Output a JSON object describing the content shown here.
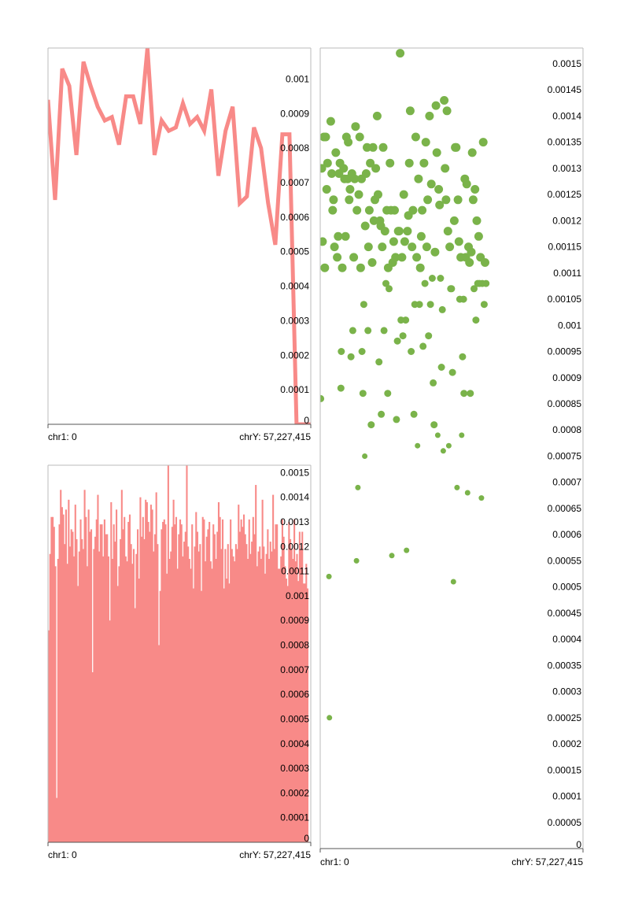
{
  "chart_data": [
    {
      "type": "line",
      "color": "#f88a88",
      "xlabel_left": "chr1: 0",
      "xlabel_right": "chrY: 57,227,415",
      "ylim": [
        0,
        0.00109
      ],
      "yticks": [
        "0",
        "0.0001",
        "0.0002",
        "0.0003",
        "0.0004",
        "0.0005",
        "0.0006",
        "0.0007",
        "0.0008",
        "0.0009",
        "0.001"
      ],
      "values": [
        0.00094,
        0.00065,
        0.00103,
        0.00098,
        0.00078,
        0.00105,
        0.00098,
        0.00092,
        0.00088,
        0.00089,
        0.00081,
        0.00095,
        0.00095,
        0.00087,
        0.00109,
        0.00078,
        0.00088,
        0.00085,
        0.00086,
        0.00093,
        0.00087,
        0.00089,
        0.00085,
        0.00097,
        0.00072,
        0.00085,
        0.00092,
        0.00064,
        0.00066,
        0.00086,
        0.0008,
        0.00064,
        0.00052,
        0.00084,
        0.00084,
        0.0,
        0.0,
        0.0
      ]
    },
    {
      "type": "bar",
      "color": "#f88a88",
      "xlabel_left": "chr1: 0",
      "xlabel_right": "chrY: 57,227,415",
      "ylim": [
        0,
        0.00153
      ],
      "yticks": [
        "0",
        "0.0001",
        "0.0002",
        "0.0003",
        "0.0004",
        "0.0005",
        "0.0006",
        "0.0007",
        "0.0008",
        "0.0009",
        "0.001",
        "0.0011",
        "0.0012",
        "0.0013",
        "0.0014",
        "0.0015"
      ],
      "values": [
        0.00086,
        0.00117,
        0.00132,
        0.00132,
        0.00128,
        0.00112,
        0.00018,
        0.00115,
        0.00129,
        0.00143,
        0.00136,
        0.00133,
        0.00121,
        0.00135,
        0.00113,
        0.00139,
        0.0012,
        0.00127,
        0.00126,
        0.00116,
        0.00137,
        0.00123,
        0.00104,
        0.00118,
        0.00131,
        0.00123,
        0.00119,
        0.00143,
        0.00132,
        0.00112,
        0.00135,
        0.00126,
        0.00127,
        0.00069,
        0.00119,
        0.00124,
        0.00131,
        0.00141,
        0.00118,
        0.00129,
        0.00129,
        0.00116,
        0.00131,
        0.00125,
        0.00125,
        0.00116,
        0.0009,
        0.00138,
        0.00115,
        0.00129,
        0.00122,
        0.00135,
        0.00104,
        0.00112,
        0.00123,
        0.00143,
        0.00127,
        0.00132,
        0.00116,
        0.00114,
        0.0013,
        0.00133,
        0.00121,
        0.00113,
        0.00119,
        0.00095,
        0.00117,
        0.00127,
        0.00107,
        0.0014,
        0.00124,
        0.00132,
        0.00123,
        0.00139,
        0.00138,
        0.0013,
        0.00126,
        0.00137,
        0.00135,
        0.00118,
        0.00125,
        0.00142,
        0.00121,
        0.0008,
        0.00102,
        0.00127,
        0.0013,
        0.00131,
        0.00129,
        0.00109,
        0.00153,
        0.00115,
        0.00118,
        0.00128,
        0.00139,
        0.00129,
        0.00132,
        0.00111,
        0.00125,
        0.00131,
        0.00129,
        0.00116,
        0.00122,
        0.00126,
        0.00153,
        0.0012,
        0.00115,
        0.00111,
        0.00129,
        0.00103,
        0.0012,
        0.00134,
        0.00126,
        0.00118,
        0.00121,
        0.00102,
        0.00132,
        0.00131,
        0.00114,
        0.00124,
        0.00127,
        0.0013,
        0.00114,
        0.00111,
        0.00129,
        0.00125,
        0.00115,
        0.00126,
        0.00138,
        0.00132,
        0.00119,
        0.00131,
        0.00103,
        0.00119,
        0.00107,
        0.00121,
        0.00105,
        0.00131,
        0.00119,
        0.00116,
        0.00114,
        0.00121,
        0.00119,
        0.00137,
        0.00126,
        0.00131,
        0.00128,
        0.00133,
        0.00125,
        0.00121,
        0.00115,
        0.00131,
        0.00117,
        0.00122,
        0.00132,
        0.00125,
        0.00145,
        0.00112,
        0.00118,
        0.0012,
        0.00115,
        0.00139,
        0.0012,
        0.00109,
        0.00117,
        0.00127,
        0.00115,
        0.00122,
        0.00118,
        0.00141,
        0.00119,
        0.00129,
        0.00129,
        0.00111,
        0.00111,
        0.00116,
        0.00131,
        0.00124,
        0.00112,
        0.00107,
        0.00104,
        0.0013,
        0.00123,
        0.00119,
        0.00115,
        0.00131,
        0.00114,
        0.00117,
        0.00106,
        0.00126,
        0.00119,
        0.00126,
        0.00105,
        0.00105,
        0.00113,
        0.00103,
        0.0,
        0.0
      ]
    },
    {
      "type": "scatter",
      "color": "#7ab34a",
      "xlabel_left": "chr1: 0",
      "xlabel_right": "chrY: 57,227,415",
      "xlim": [
        0,
        57227415
      ],
      "ylim": [
        0,
        0.00153
      ],
      "yticks": [
        "0",
        "0.00005",
        "0.0001",
        "0.00015",
        "0.0002",
        "0.00025",
        "0.0003",
        "0.00035",
        "0.0004",
        "0.00045",
        "0.0005",
        "0.00055",
        "0.0006",
        "0.00065",
        "0.0007",
        "0.00075",
        "0.0008",
        "0.00085",
        "0.0009",
        "0.00095",
        "0.001",
        "0.00105",
        "0.0011",
        "0.00115",
        "0.0012",
        "0.00125",
        "0.0013",
        "0.00135",
        "0.0014",
        "0.00145",
        "0.0015"
      ],
      "points": [
        [
          100000,
          0.00086
        ],
        [
          350000,
          0.0013
        ],
        [
          500000,
          0.00116
        ],
        [
          800000,
          0.00136
        ],
        [
          1000000,
          0.00111
        ],
        [
          1200000,
          0.00136
        ],
        [
          1400000,
          0.00126
        ],
        [
          1600000,
          0.00131
        ],
        [
          1900000,
          0.00052
        ],
        [
          2000000,
          0.00025
        ],
        [
          2300000,
          0.00139
        ],
        [
          2500000,
          0.00129
        ],
        [
          2700000,
          0.00122
        ],
        [
          2900000,
          0.00124
        ],
        [
          3100000,
          0.00115
        ],
        [
          3400000,
          0.00133
        ],
        [
          3700000,
          0.00113
        ],
        [
          3900000,
          0.00117
        ],
        [
          4100000,
          0.00129
        ],
        [
          4300000,
          0.00131
        ],
        [
          4500000,
          0.00088
        ],
        [
          4600000,
          0.00095
        ],
        [
          4800000,
          0.00111
        ],
        [
          5100000,
          0.0013
        ],
        [
          5300000,
          0.00128
        ],
        [
          5500000,
          0.00117
        ],
        [
          5700000,
          0.00136
        ],
        [
          6000000,
          0.00128
        ],
        [
          6100000,
          0.00135
        ],
        [
          6300000,
          0.00124
        ],
        [
          6500000,
          0.00126
        ],
        [
          6700000,
          0.00094
        ],
        [
          6900000,
          0.00129
        ],
        [
          7100000,
          0.00099
        ],
        [
          7300000,
          0.00113
        ],
        [
          7500000,
          0.00128
        ],
        [
          7700000,
          0.00138
        ],
        [
          7900000,
          0.00055
        ],
        [
          8000000,
          0.00122
        ],
        [
          8200000,
          0.00069
        ],
        [
          8400000,
          0.00125
        ],
        [
          8600000,
          0.00136
        ],
        [
          8800000,
          0.00111
        ],
        [
          9000000,
          0.00128
        ],
        [
          9100000,
          0.00095
        ],
        [
          9300000,
          0.00087
        ],
        [
          9500000,
          0.00104
        ],
        [
          9700000,
          0.00075
        ],
        [
          9800000,
          0.00119
        ],
        [
          10000000,
          0.00129
        ],
        [
          10200000,
          0.00134
        ],
        [
          10400000,
          0.00099
        ],
        [
          10500000,
          0.00115
        ],
        [
          10700000,
          0.00122
        ],
        [
          10900000,
          0.00131
        ],
        [
          11100000,
          0.00081
        ],
        [
          11300000,
          0.00112
        ],
        [
          11500000,
          0.00134
        ],
        [
          11700000,
          0.0012
        ],
        [
          11900000,
          0.00124
        ],
        [
          12100000,
          0.0013
        ],
        [
          12400000,
          0.0014
        ],
        [
          12600000,
          0.00125
        ],
        [
          12800000,
          0.00093
        ],
        [
          13000000,
          0.0012
        ],
        [
          13200000,
          0.00119
        ],
        [
          13300000,
          0.00083
        ],
        [
          13500000,
          0.00115
        ],
        [
          13700000,
          0.00134
        ],
        [
          13900000,
          0.00099
        ],
        [
          14100000,
          0.00118
        ],
        [
          14300000,
          0.00108
        ],
        [
          14500000,
          0.00122
        ],
        [
          14700000,
          0.00087
        ],
        [
          14800000,
          0.00111
        ],
        [
          15000000,
          0.00107
        ],
        [
          15200000,
          0.00131
        ],
        [
          15400000,
          0.00122
        ],
        [
          15600000,
          0.00056
        ],
        [
          15800000,
          0.00112
        ],
        [
          16000000,
          0.00116
        ],
        [
          16200000,
          0.00122
        ],
        [
          16400000,
          0.00113
        ],
        [
          16600000,
          0.00082
        ],
        [
          16800000,
          0.00097
        ],
        [
          17000000,
          0.00118
        ],
        [
          17200000,
          0.00118
        ],
        [
          17400000,
          0.00152
        ],
        [
          17600000,
          0.00101
        ],
        [
          17800000,
          0.00113
        ],
        [
          18000000,
          0.00098
        ],
        [
          18200000,
          0.00125
        ],
        [
          18400000,
          0.00116
        ],
        [
          18600000,
          0.00101
        ],
        [
          18800000,
          0.00057
        ],
        [
          19000000,
          0.00118
        ],
        [
          19200000,
          0.00121
        ],
        [
          19400000,
          0.00131
        ],
        [
          19600000,
          0.00141
        ],
        [
          19800000,
          0.00095
        ],
        [
          20000000,
          0.00115
        ],
        [
          20200000,
          0.00122
        ],
        [
          20400000,
          0.00083
        ],
        [
          20600000,
          0.00104
        ],
        [
          20800000,
          0.00136
        ],
        [
          21000000,
          0.00113
        ],
        [
          21200000,
          0.00077
        ],
        [
          21400000,
          0.00128
        ],
        [
          21600000,
          0.00104
        ],
        [
          21800000,
          0.00111
        ],
        [
          22000000,
          0.00117
        ],
        [
          22200000,
          0.00122
        ],
        [
          22400000,
          0.00096
        ],
        [
          22600000,
          0.00131
        ],
        [
          22800000,
          0.00108
        ],
        [
          23000000,
          0.00135
        ],
        [
          23200000,
          0.00115
        ],
        [
          23400000,
          0.00124
        ],
        [
          23600000,
          0.00098
        ],
        [
          23800000,
          0.0014
        ],
        [
          24000000,
          0.00104
        ],
        [
          24200000,
          0.00127
        ],
        [
          24400000,
          0.00109
        ],
        [
          24600000,
          0.00089
        ],
        [
          24800000,
          0.00081
        ],
        [
          25000000,
          0.00114
        ],
        [
          25200000,
          0.00142
        ],
        [
          25400000,
          0.00133
        ],
        [
          25600000,
          0.00079
        ],
        [
          25800000,
          0.00126
        ],
        [
          26000000,
          0.00123
        ],
        [
          26200000,
          0.00109
        ],
        [
          26400000,
          0.00092
        ],
        [
          26600000,
          0.00103
        ],
        [
          26800000,
          0.00076
        ],
        [
          27000000,
          0.00143
        ],
        [
          27200000,
          0.0013
        ],
        [
          27400000,
          0.00124
        ],
        [
          27600000,
          0.00141
        ],
        [
          27800000,
          0.00118
        ],
        [
          28000000,
          0.00077
        ],
        [
          28200000,
          0.00115
        ],
        [
          28400000,
          0.00107
        ],
        [
          28600000,
          0.00107
        ],
        [
          28800000,
          0.00091
        ],
        [
          29000000,
          0.00051
        ],
        [
          29200000,
          0.0012
        ],
        [
          29400000,
          0.00134
        ],
        [
          29600000,
          0.00134
        ],
        [
          29800000,
          0.00069
        ],
        [
          30000000,
          0.00124
        ],
        [
          30200000,
          0.00116
        ],
        [
          30400000,
          0.00105
        ],
        [
          30600000,
          0.00113
        ],
        [
          30800000,
          0.00079
        ],
        [
          31000000,
          0.00094
        ],
        [
          31200000,
          0.00105
        ],
        [
          31300000,
          0.00087
        ],
        [
          31500000,
          0.00128
        ],
        [
          31700000,
          0.00113
        ],
        [
          31900000,
          0.00127
        ],
        [
          32100000,
          0.00068
        ],
        [
          32300000,
          0.00115
        ],
        [
          32500000,
          0.00112
        ],
        [
          32700000,
          0.00087
        ],
        [
          32900000,
          0.00114
        ],
        [
          33100000,
          0.00133
        ],
        [
          33300000,
          0.00124
        ],
        [
          33500000,
          0.00107
        ],
        [
          33700000,
          0.00126
        ],
        [
          33900000,
          0.00101
        ],
        [
          34100000,
          0.0012
        ],
        [
          34300000,
          0.00108
        ],
        [
          34500000,
          0.00117
        ],
        [
          34700000,
          0.00108
        ],
        [
          34900000,
          0.00113
        ],
        [
          35100000,
          0.00067
        ],
        [
          35300000,
          0.00108
        ],
        [
          35500000,
          0.00135
        ],
        [
          35700000,
          0.00104
        ],
        [
          35900000,
          0.00112
        ],
        [
          36100000,
          0.00108
        ]
      ]
    }
  ]
}
